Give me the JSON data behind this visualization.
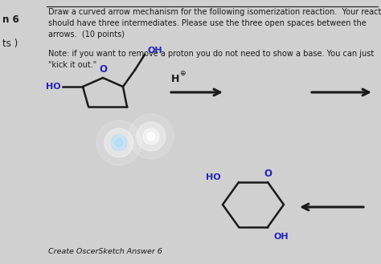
{
  "bg_color": "#d0d0d0",
  "title_text": "Draw a curved arrow mechanism for the following isomerization reaction.  Your reaction\nshould have three intermediates. Please use the three open spaces between the\narrows.  (10 points)",
  "note_text": "Note: if you want to remove a proton you do not need to show a base. You can just\n\"kick it out.\"",
  "left_label_n6": "n 6",
  "left_label_pts": "ts )",
  "bottom_text": "Create OscerSketch Answer 6",
  "bond_color": "#1a1a1a",
  "heteroatom_color": "#2222bb",
  "text_color": "#1a1a1a",
  "title_fontsize": 7.0,
  "note_fontsize": 7.0,
  "label_fontsize": 8.5
}
